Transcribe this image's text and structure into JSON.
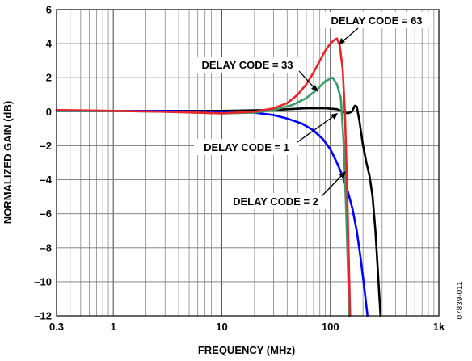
{
  "chart_data": {
    "type": "line",
    "xlabel": "FREQUENCY (MHz)",
    "ylabel": "NORMALIZED GAIN (dB)",
    "x_scale": "log",
    "xlim": [
      0.3,
      1000
    ],
    "ylim": [
      -12,
      6
    ],
    "grid": true,
    "x_ticks": [
      0.3,
      1,
      10,
      100,
      1000
    ],
    "x_tick_labels": [
      "0.3",
      "1",
      "10",
      "100",
      "1k"
    ],
    "y_ticks": [
      -12,
      -10,
      -8,
      -6,
      -4,
      -2,
      0,
      2,
      4,
      6
    ],
    "y_tick_labels": [
      "–12",
      "–10",
      "–8",
      "–6",
      "–4",
      "–2",
      "0",
      "2",
      "4",
      "6"
    ],
    "series": [
      {
        "name": "DELAY CODE = 1",
        "color": "#000000",
        "points": [
          [
            0.3,
            0.05
          ],
          [
            1,
            0.05
          ],
          [
            3,
            0.05
          ],
          [
            10,
            0.05
          ],
          [
            30,
            0.1
          ],
          [
            60,
            0.2
          ],
          [
            90,
            0.2
          ],
          [
            115,
            0.15
          ],
          [
            130,
            0.0
          ],
          [
            145,
            -0.1
          ],
          [
            158,
            0.0
          ],
          [
            168,
            0.35
          ],
          [
            175,
            0.3
          ],
          [
            185,
            -0.5
          ],
          [
            200,
            -2.0
          ],
          [
            215,
            -3.0
          ],
          [
            230,
            -3.8
          ],
          [
            245,
            -5.0
          ],
          [
            260,
            -7.0
          ],
          [
            275,
            -9.5
          ],
          [
            290,
            -12.0
          ]
        ]
      },
      {
        "name": "DELAY CODE = 2",
        "color": "#0000ff",
        "points": [
          [
            0.3,
            0.05
          ],
          [
            1,
            0.05
          ],
          [
            3,
            0.05
          ],
          [
            10,
            0.0
          ],
          [
            20,
            -0.05
          ],
          [
            30,
            -0.2
          ],
          [
            40,
            -0.4
          ],
          [
            55,
            -0.7
          ],
          [
            70,
            -1.1
          ],
          [
            85,
            -1.6
          ],
          [
            100,
            -2.2
          ],
          [
            115,
            -3.0
          ],
          [
            130,
            -3.8
          ],
          [
            145,
            -4.7
          ],
          [
            160,
            -5.7
          ],
          [
            175,
            -7.0
          ],
          [
            190,
            -8.6
          ],
          [
            205,
            -10.3
          ],
          [
            220,
            -12.0
          ]
        ]
      },
      {
        "name": "DELAY CODE = 33",
        "color": "#3a9a6a",
        "points": [
          [
            0.3,
            0.05
          ],
          [
            1,
            0.05
          ],
          [
            3,
            0.0
          ],
          [
            10,
            -0.1
          ],
          [
            20,
            -0.05
          ],
          [
            30,
            0.1
          ],
          [
            45,
            0.4
          ],
          [
            60,
            0.8
          ],
          [
            75,
            1.3
          ],
          [
            90,
            1.8
          ],
          [
            105,
            2.0
          ],
          [
            115,
            1.6
          ],
          [
            125,
            0.8
          ],
          [
            133,
            -2.0
          ],
          [
            140,
            -6.0
          ],
          [
            145,
            -9.0
          ],
          [
            150,
            -12.0
          ]
        ]
      },
      {
        "name": "DELAY CODE = 63",
        "color": "#e8262a",
        "points": [
          [
            0.3,
            0.1
          ],
          [
            1,
            0.05
          ],
          [
            3,
            0.0
          ],
          [
            10,
            -0.1
          ],
          [
            20,
            0.0
          ],
          [
            30,
            0.2
          ],
          [
            40,
            0.5
          ],
          [
            50,
            1.0
          ],
          [
            60,
            1.6
          ],
          [
            70,
            2.3
          ],
          [
            80,
            3.0
          ],
          [
            90,
            3.6
          ],
          [
            100,
            4.0
          ],
          [
            108,
            4.2
          ],
          [
            115,
            4.3
          ],
          [
            122,
            3.9
          ],
          [
            130,
            2.5
          ],
          [
            136,
            0.0
          ],
          [
            142,
            -4.0
          ],
          [
            147,
            -8.0
          ],
          [
            152,
            -12.0
          ]
        ]
      }
    ],
    "annotations": [
      {
        "text": "DELAY CODE = 63"
      },
      {
        "text": "DELAY CODE = 33"
      },
      {
        "text": "DELAY CODE = 1"
      },
      {
        "text": "DELAY CODE = 2"
      }
    ]
  },
  "figure_id": "07839-011"
}
